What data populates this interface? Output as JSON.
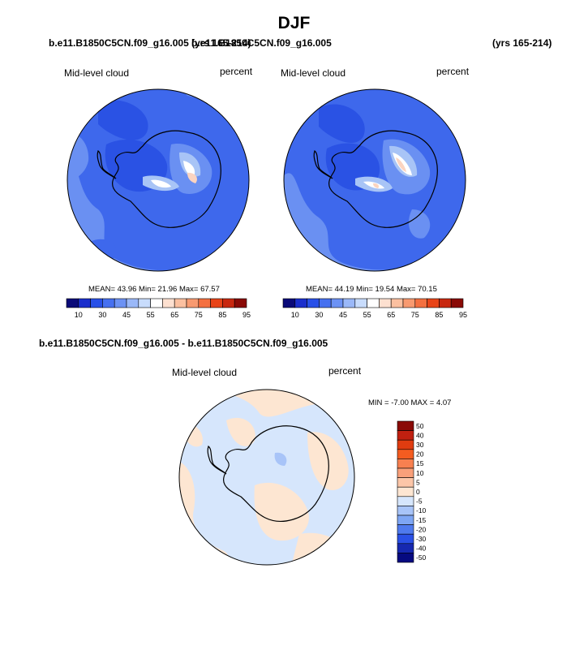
{
  "figure": {
    "title": "DJF",
    "left_case": "b.e11.B1850C5CN.f09_g16.005 (yrs 165-214)",
    "right_case": "b.e11.B1850C5CN.f09_g16.005",
    "right_years": "(yrs 165-214)",
    "diff_case": "b.e11.B1850C5CN.f09_g16.005 - b.e11.B1850C5CN.f09_g16.005"
  },
  "panels": {
    "left": {
      "variable": "Mid-level cloud",
      "units": "percent",
      "stats": "MEAN=  43.96  Min=  21.96  Max=  67.57"
    },
    "right": {
      "variable": "Mid-level cloud",
      "units": "percent",
      "stats": "MEAN=  44.19  Min=  19.54  Max=  70.15"
    },
    "diff": {
      "variable": "Mid-level cloud",
      "units": "percent",
      "stats": "MIN =  -7.00 MAX =   4.07"
    }
  },
  "colorbars": {
    "field": {
      "labels": [
        "10",
        "30",
        "45",
        "55",
        "65",
        "75",
        "85",
        "95"
      ],
      "colors": [
        "#0a0a78",
        "#1a2ecc",
        "#2850e8",
        "#4670f0",
        "#6c92f4",
        "#9ab8f8",
        "#c8dcfc",
        "#ffffff",
        "#fde0d0",
        "#fbc0a0",
        "#f89a70",
        "#f47040",
        "#e84418",
        "#c82810",
        "#8a0a06"
      ]
    },
    "diff": {
      "labels": [
        "50",
        "40",
        "30",
        "20",
        "15",
        "10",
        "5",
        "0",
        "-5",
        "-10",
        "-15",
        "-20",
        "-30",
        "-40",
        "-50"
      ],
      "colors": [
        "#8a0a06",
        "#c02010",
        "#e03c10",
        "#f45c20",
        "#f88050",
        "#f9a07a",
        "#fcc6a8",
        "#fde6d2",
        "#d6e6fc",
        "#a8c4f8",
        "#7ea6f4",
        "#4f7aee",
        "#2a50e6",
        "#1628b0",
        "#060a80"
      ]
    }
  },
  "map_colors": {
    "base": "#3e68ec",
    "dark": "#2a52e4",
    "light": "#6a90f2",
    "pale": "#a8c4f6",
    "white": "#ffffff",
    "pink": "#fbd4c0",
    "diff_base": "#d6e6fc",
    "diff_pos": "#fde6d2"
  }
}
